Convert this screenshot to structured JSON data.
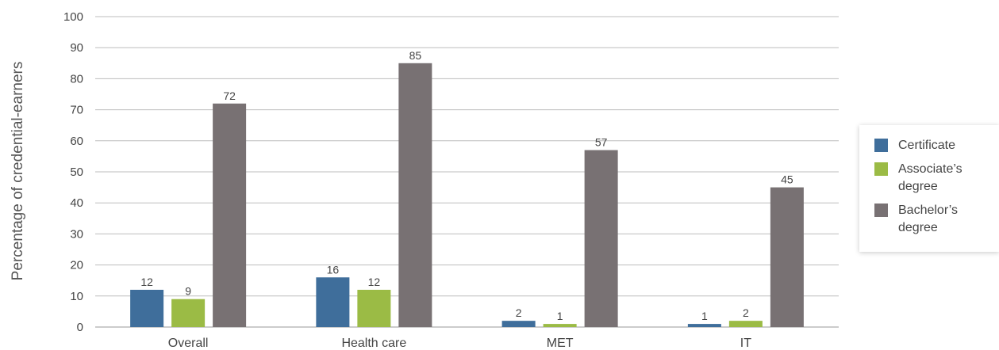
{
  "chart_data": {
    "type": "bar",
    "title": "",
    "xlabel": "",
    "ylabel": "Percentage of credential-earners",
    "ylim": [
      0,
      100
    ],
    "yticks": [
      0,
      10,
      20,
      30,
      40,
      50,
      60,
      70,
      80,
      90,
      100
    ],
    "categories": [
      "Overall",
      "Health care",
      "MET",
      "IT"
    ],
    "grid": true,
    "legend_position": "right",
    "series": [
      {
        "name": "Certificate",
        "color": "#3f6e9b",
        "values": [
          12,
          16,
          2,
          1
        ]
      },
      {
        "name": "Associate’s degree",
        "color": "#9bbb45",
        "values": [
          9,
          12,
          1,
          2
        ]
      },
      {
        "name": "Bachelor’s degree",
        "color": "#787173",
        "values": [
          72,
          85,
          57,
          45
        ]
      }
    ]
  }
}
